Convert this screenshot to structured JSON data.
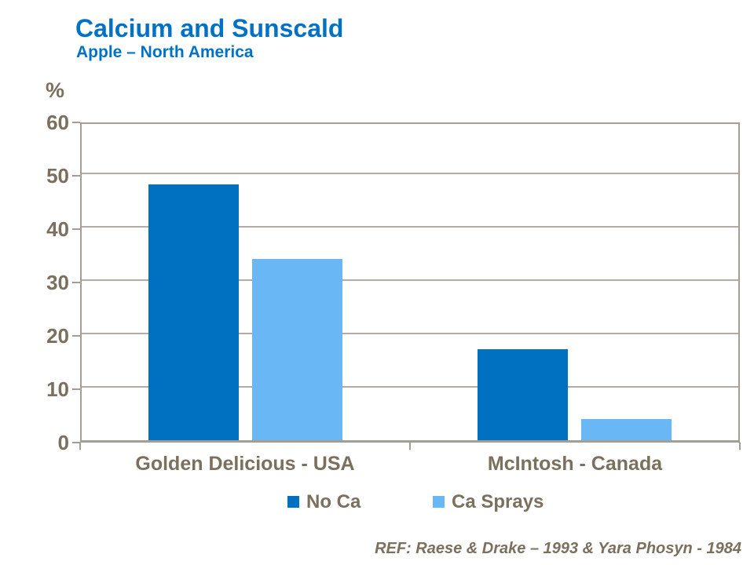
{
  "header": {
    "title": "Calcium and Sunscald",
    "subtitle": "Apple – North America"
  },
  "chart_data": {
    "type": "bar",
    "title": "Calcium and Sunscald",
    "subtitle": "Apple – North America",
    "ylabel": "%",
    "xlabel": "",
    "ylim": [
      0,
      60
    ],
    "yticks": [
      60,
      50,
      40,
      30,
      20,
      10,
      0
    ],
    "grid": "horizontal",
    "legend_position": "bottom",
    "categories": [
      "Golden Delicious - USA",
      "McIntosh - Canada"
    ],
    "series": [
      {
        "name": "No Ca",
        "color": "#0070C0",
        "values": [
          48,
          17
        ]
      },
      {
        "name": "Ca Sprays",
        "color": "#69B8F5",
        "values": [
          34,
          4
        ]
      }
    ]
  },
  "footer": {
    "reference": "REF: Raese & Drake – 1993 & Yara Phosyn - 1984"
  },
  "colors": {
    "title_blue": "#0072C6",
    "axis_text": "#7B6F5D",
    "plot_border": "#A69E93",
    "gridline": "#B4ACA2",
    "background": "#FFFFFF"
  }
}
